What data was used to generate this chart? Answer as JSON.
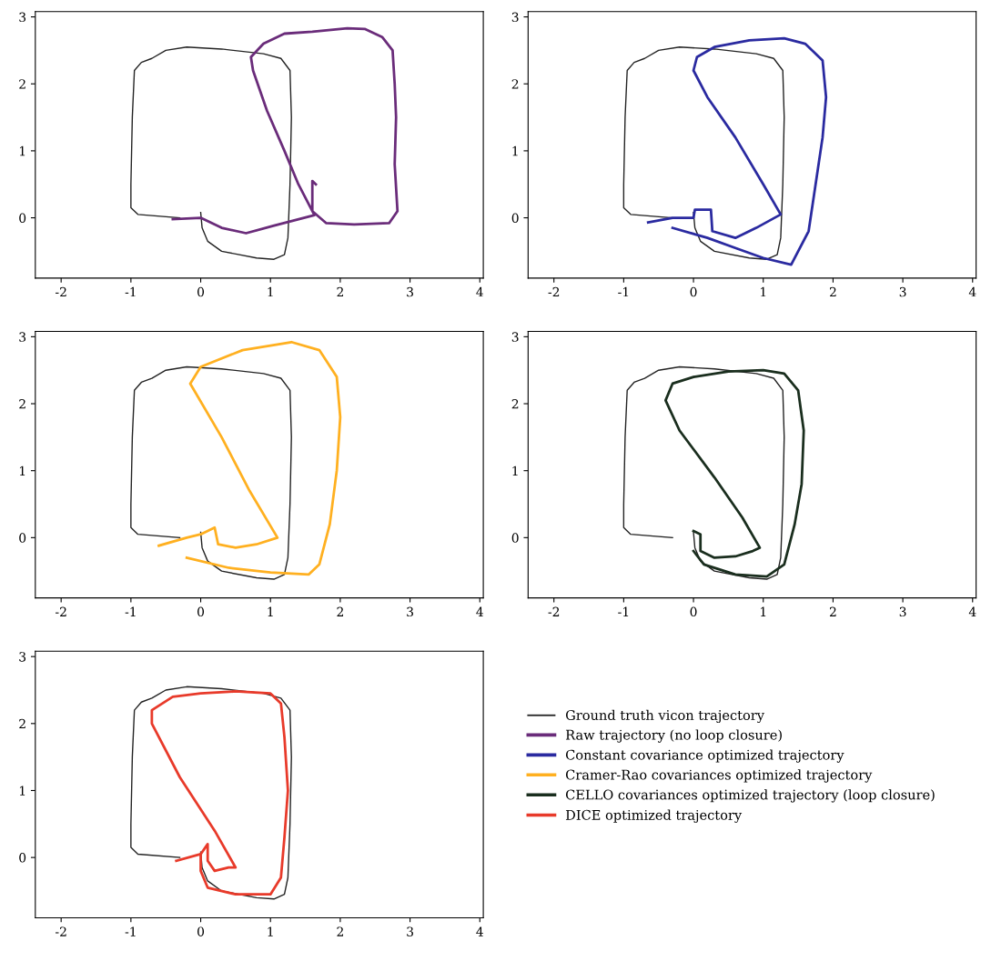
{
  "chart_data": [
    {
      "type": "line",
      "xlim": [
        -2.37,
        4.05
      ],
      "ylim": [
        -0.9,
        3.08
      ],
      "xticks": [
        -2,
        -1,
        0,
        1,
        2,
        3,
        4
      ],
      "yticks": [
        0,
        1,
        2,
        3
      ],
      "grid": false,
      "legend": "bottom right",
      "line_style": "solid",
      "marker": "none",
      "series": [
        {
          "name": "Ground truth vicon trajectory",
          "color": "#222222",
          "x": [
            -0.3,
            -0.9,
            -1.0,
            -1.0,
            -0.98,
            -0.95,
            -0.85,
            -0.7,
            -0.5,
            -0.2,
            0.3,
            0.9,
            1.15,
            1.28,
            1.3,
            1.28,
            1.25,
            1.2,
            1.05,
            0.8,
            0.3,
            0.1,
            0.02,
            0.0
          ],
          "values": [
            0.0,
            0.05,
            0.15,
            0.5,
            1.5,
            2.2,
            2.32,
            2.38,
            2.5,
            2.55,
            2.52,
            2.45,
            2.38,
            2.2,
            1.5,
            0.5,
            -0.3,
            -0.55,
            -0.62,
            -0.6,
            -0.5,
            -0.35,
            -0.15,
            0.08
          ]
        },
        {
          "name": "Raw trajectory (no loop closure)",
          "color": "#6a2c7a",
          "x": [
            -0.4,
            0.0,
            0.3,
            0.65,
            1.04,
            1.63,
            1.4,
            1.2,
            0.95,
            0.75,
            0.72,
            0.9,
            1.2,
            1.6,
            2.1,
            2.35,
            2.6,
            2.75,
            2.78,
            2.8,
            2.78,
            2.82,
            2.7,
            2.2,
            1.8,
            1.6,
            1.6,
            1.65
          ],
          "values": [
            -0.02,
            0.0,
            -0.15,
            -0.23,
            -0.12,
            0.04,
            0.5,
            1.0,
            1.6,
            2.2,
            2.4,
            2.6,
            2.75,
            2.78,
            2.83,
            2.82,
            2.7,
            2.5,
            2.0,
            1.5,
            0.8,
            0.1,
            -0.08,
            -0.1,
            -0.08,
            0.1,
            0.55,
            0.5
          ]
        }
      ]
    },
    {
      "type": "line",
      "xlim": [
        -2.37,
        4.05
      ],
      "ylim": [
        -0.9,
        3.08
      ],
      "xticks": [
        -2,
        -1,
        0,
        1,
        2,
        3,
        4
      ],
      "yticks": [
        0,
        1,
        2,
        3
      ],
      "grid": false,
      "legend": "bottom left",
      "line_style": "solid",
      "marker": "none",
      "series": [
        {
          "color": "#222222",
          "x": [
            -0.3,
            -0.9,
            -1.0,
            -1.0,
            -0.98,
            -0.95,
            -0.85,
            -0.7,
            -0.5,
            -0.2,
            0.3,
            0.9,
            1.15,
            1.28,
            1.3,
            1.28,
            1.25,
            1.2,
            1.05,
            0.8,
            0.3,
            0.1,
            0.02,
            0.0
          ],
          "values": [
            0.0,
            0.05,
            0.15,
            0.5,
            1.5,
            2.2,
            2.32,
            2.38,
            2.5,
            2.55,
            2.52,
            2.45,
            2.38,
            2.2,
            1.5,
            0.5,
            -0.3,
            -0.55,
            -0.62,
            -0.6,
            -0.5,
            -0.35,
            -0.15,
            0.08
          ]
        },
        {
          "name": "Constant covariance optimized trajectory",
          "color": "#2a2aa0",
          "x": [
            -0.65,
            -0.3,
            0.0,
            0.02,
            0.25,
            0.27,
            0.6,
            0.9,
            1.25,
            1.0,
            0.6,
            0.2,
            0.0,
            0.05,
            0.3,
            0.8,
            1.3,
            1.6,
            1.85,
            1.9,
            1.85,
            1.75,
            1.65,
            1.4,
            1.0,
            0.6,
            0.2,
            -0.3
          ],
          "values": [
            -0.07,
            0.0,
            0.0,
            0.12,
            0.12,
            -0.2,
            -0.3,
            -0.15,
            0.05,
            0.5,
            1.2,
            1.8,
            2.2,
            2.4,
            2.55,
            2.65,
            2.68,
            2.6,
            2.35,
            1.8,
            1.2,
            0.5,
            -0.2,
            -0.7,
            -0.6,
            -0.45,
            -0.3,
            -0.15
          ]
        }
      ]
    },
    {
      "type": "line",
      "xlim": [
        -2.37,
        4.05
      ],
      "ylim": [
        -0.9,
        3.08
      ],
      "xticks": [
        -2,
        -1,
        0,
        1,
        2,
        3,
        4
      ],
      "yticks": [
        0,
        1,
        2,
        3
      ],
      "grid": false,
      "legend": "bottom right",
      "line_style": "solid",
      "marker": "none",
      "series": [
        {
          "color": "#222222",
          "x": [
            -0.3,
            -0.9,
            -1.0,
            -1.0,
            -0.98,
            -0.95,
            -0.85,
            -0.7,
            -0.5,
            -0.2,
            0.3,
            0.9,
            1.15,
            1.28,
            1.3,
            1.28,
            1.25,
            1.2,
            1.05,
            0.8,
            0.3,
            0.1,
            0.02,
            0.0
          ],
          "values": [
            0.0,
            0.05,
            0.15,
            0.5,
            1.5,
            2.2,
            2.32,
            2.38,
            2.5,
            2.55,
            2.52,
            2.45,
            2.38,
            2.2,
            1.5,
            0.5,
            -0.3,
            -0.55,
            -0.62,
            -0.6,
            -0.5,
            -0.35,
            -0.15,
            0.08
          ]
        },
        {
          "name": "Cramer-Rao covariances optimized trajectory",
          "color": "#ffb020",
          "x": [
            -0.6,
            -0.2,
            0.0,
            0.2,
            0.25,
            0.5,
            0.8,
            1.1,
            0.7,
            0.3,
            -0.15,
            0.0,
            0.6,
            1.3,
            1.7,
            1.95,
            2.0,
            1.95,
            1.85,
            1.7,
            1.55,
            1.0,
            0.4,
            -0.2
          ],
          "values": [
            -0.12,
            0.0,
            0.05,
            0.15,
            -0.1,
            -0.15,
            -0.1,
            0.0,
            0.7,
            1.5,
            2.3,
            2.55,
            2.8,
            2.92,
            2.8,
            2.4,
            1.8,
            1.0,
            0.2,
            -0.4,
            -0.55,
            -0.52,
            -0.45,
            -0.3
          ]
        }
      ]
    },
    {
      "type": "line",
      "xlim": [
        -2.37,
        4.05
      ],
      "ylim": [
        -0.9,
        3.08
      ],
      "xticks": [
        -2,
        -1,
        0,
        1,
        2,
        3,
        4
      ],
      "yticks": [
        0,
        1,
        2,
        3
      ],
      "grid": false,
      "legend": "bottom right",
      "line_style": "solid",
      "marker": "none",
      "series": [
        {
          "color": "#222222",
          "x": [
            -0.3,
            -0.9,
            -1.0,
            -1.0,
            -0.98,
            -0.95,
            -0.85,
            -0.7,
            -0.5,
            -0.2,
            0.3,
            0.9,
            1.15,
            1.28,
            1.3,
            1.28,
            1.25,
            1.2,
            1.05,
            0.8,
            0.3,
            0.1,
            0.02,
            0.0
          ],
          "values": [
            0.0,
            0.05,
            0.15,
            0.5,
            1.5,
            2.2,
            2.32,
            2.38,
            2.5,
            2.55,
            2.52,
            2.45,
            2.38,
            2.2,
            1.5,
            0.5,
            -0.3,
            -0.55,
            -0.62,
            -0.6,
            -0.5,
            -0.35,
            -0.15,
            0.08
          ]
        },
        {
          "name": "CELLO covariances optimized trajectory (loop closure)",
          "color": "#1a2e1e",
          "x": [
            0.0,
            0.1,
            0.1,
            0.3,
            0.6,
            0.85,
            0.95,
            0.7,
            0.3,
            -0.2,
            -0.4,
            -0.3,
            0.0,
            0.5,
            1.0,
            1.3,
            1.5,
            1.58,
            1.55,
            1.45,
            1.3,
            1.05,
            0.6,
            0.15,
            0.0
          ],
          "values": [
            0.1,
            0.05,
            -0.2,
            -0.3,
            -0.28,
            -0.2,
            -0.15,
            0.3,
            0.9,
            1.6,
            2.05,
            2.3,
            2.4,
            2.48,
            2.5,
            2.45,
            2.2,
            1.6,
            0.8,
            0.2,
            -0.4,
            -0.58,
            -0.55,
            -0.4,
            -0.2
          ]
        }
      ]
    },
    {
      "type": "line",
      "xlim": [
        -2.37,
        4.05
      ],
      "ylim": [
        -0.9,
        3.08
      ],
      "xticks": [
        -2,
        -1,
        0,
        1,
        2,
        3,
        4
      ],
      "yticks": [
        0,
        1,
        2,
        3
      ],
      "grid": false,
      "legend": "bottom right",
      "line_style": "solid",
      "marker": "none",
      "series": [
        {
          "color": "#222222",
          "x": [
            -0.3,
            -0.9,
            -1.0,
            -1.0,
            -0.98,
            -0.95,
            -0.85,
            -0.7,
            -0.5,
            -0.2,
            0.3,
            0.9,
            1.15,
            1.28,
            1.3,
            1.28,
            1.25,
            1.2,
            1.05,
            0.8,
            0.3,
            0.1,
            0.02,
            0.0
          ],
          "values": [
            0.0,
            0.05,
            0.15,
            0.5,
            1.5,
            2.2,
            2.32,
            2.38,
            2.5,
            2.55,
            2.52,
            2.45,
            2.38,
            2.2,
            1.5,
            0.5,
            -0.3,
            -0.55,
            -0.62,
            -0.6,
            -0.5,
            -0.35,
            -0.15,
            0.08
          ]
        },
        {
          "name": "DICE optimized trajectory",
          "color": "#e83a2a",
          "x": [
            -0.35,
            0.0,
            0.1,
            0.1,
            0.2,
            0.4,
            0.5,
            0.2,
            -0.3,
            -0.7,
            -0.7,
            -0.4,
            0.0,
            0.5,
            1.0,
            1.15,
            1.2,
            1.25,
            1.2,
            1.15,
            1.0,
            0.5,
            0.1,
            0.0,
            0.0
          ],
          "values": [
            -0.05,
            0.05,
            0.2,
            -0.05,
            -0.2,
            -0.15,
            -0.15,
            0.4,
            1.2,
            2.0,
            2.2,
            2.4,
            2.45,
            2.48,
            2.45,
            2.3,
            1.8,
            1.0,
            0.3,
            -0.3,
            -0.55,
            -0.55,
            -0.45,
            -0.2,
            0.05
          ]
        }
      ]
    }
  ]
}
